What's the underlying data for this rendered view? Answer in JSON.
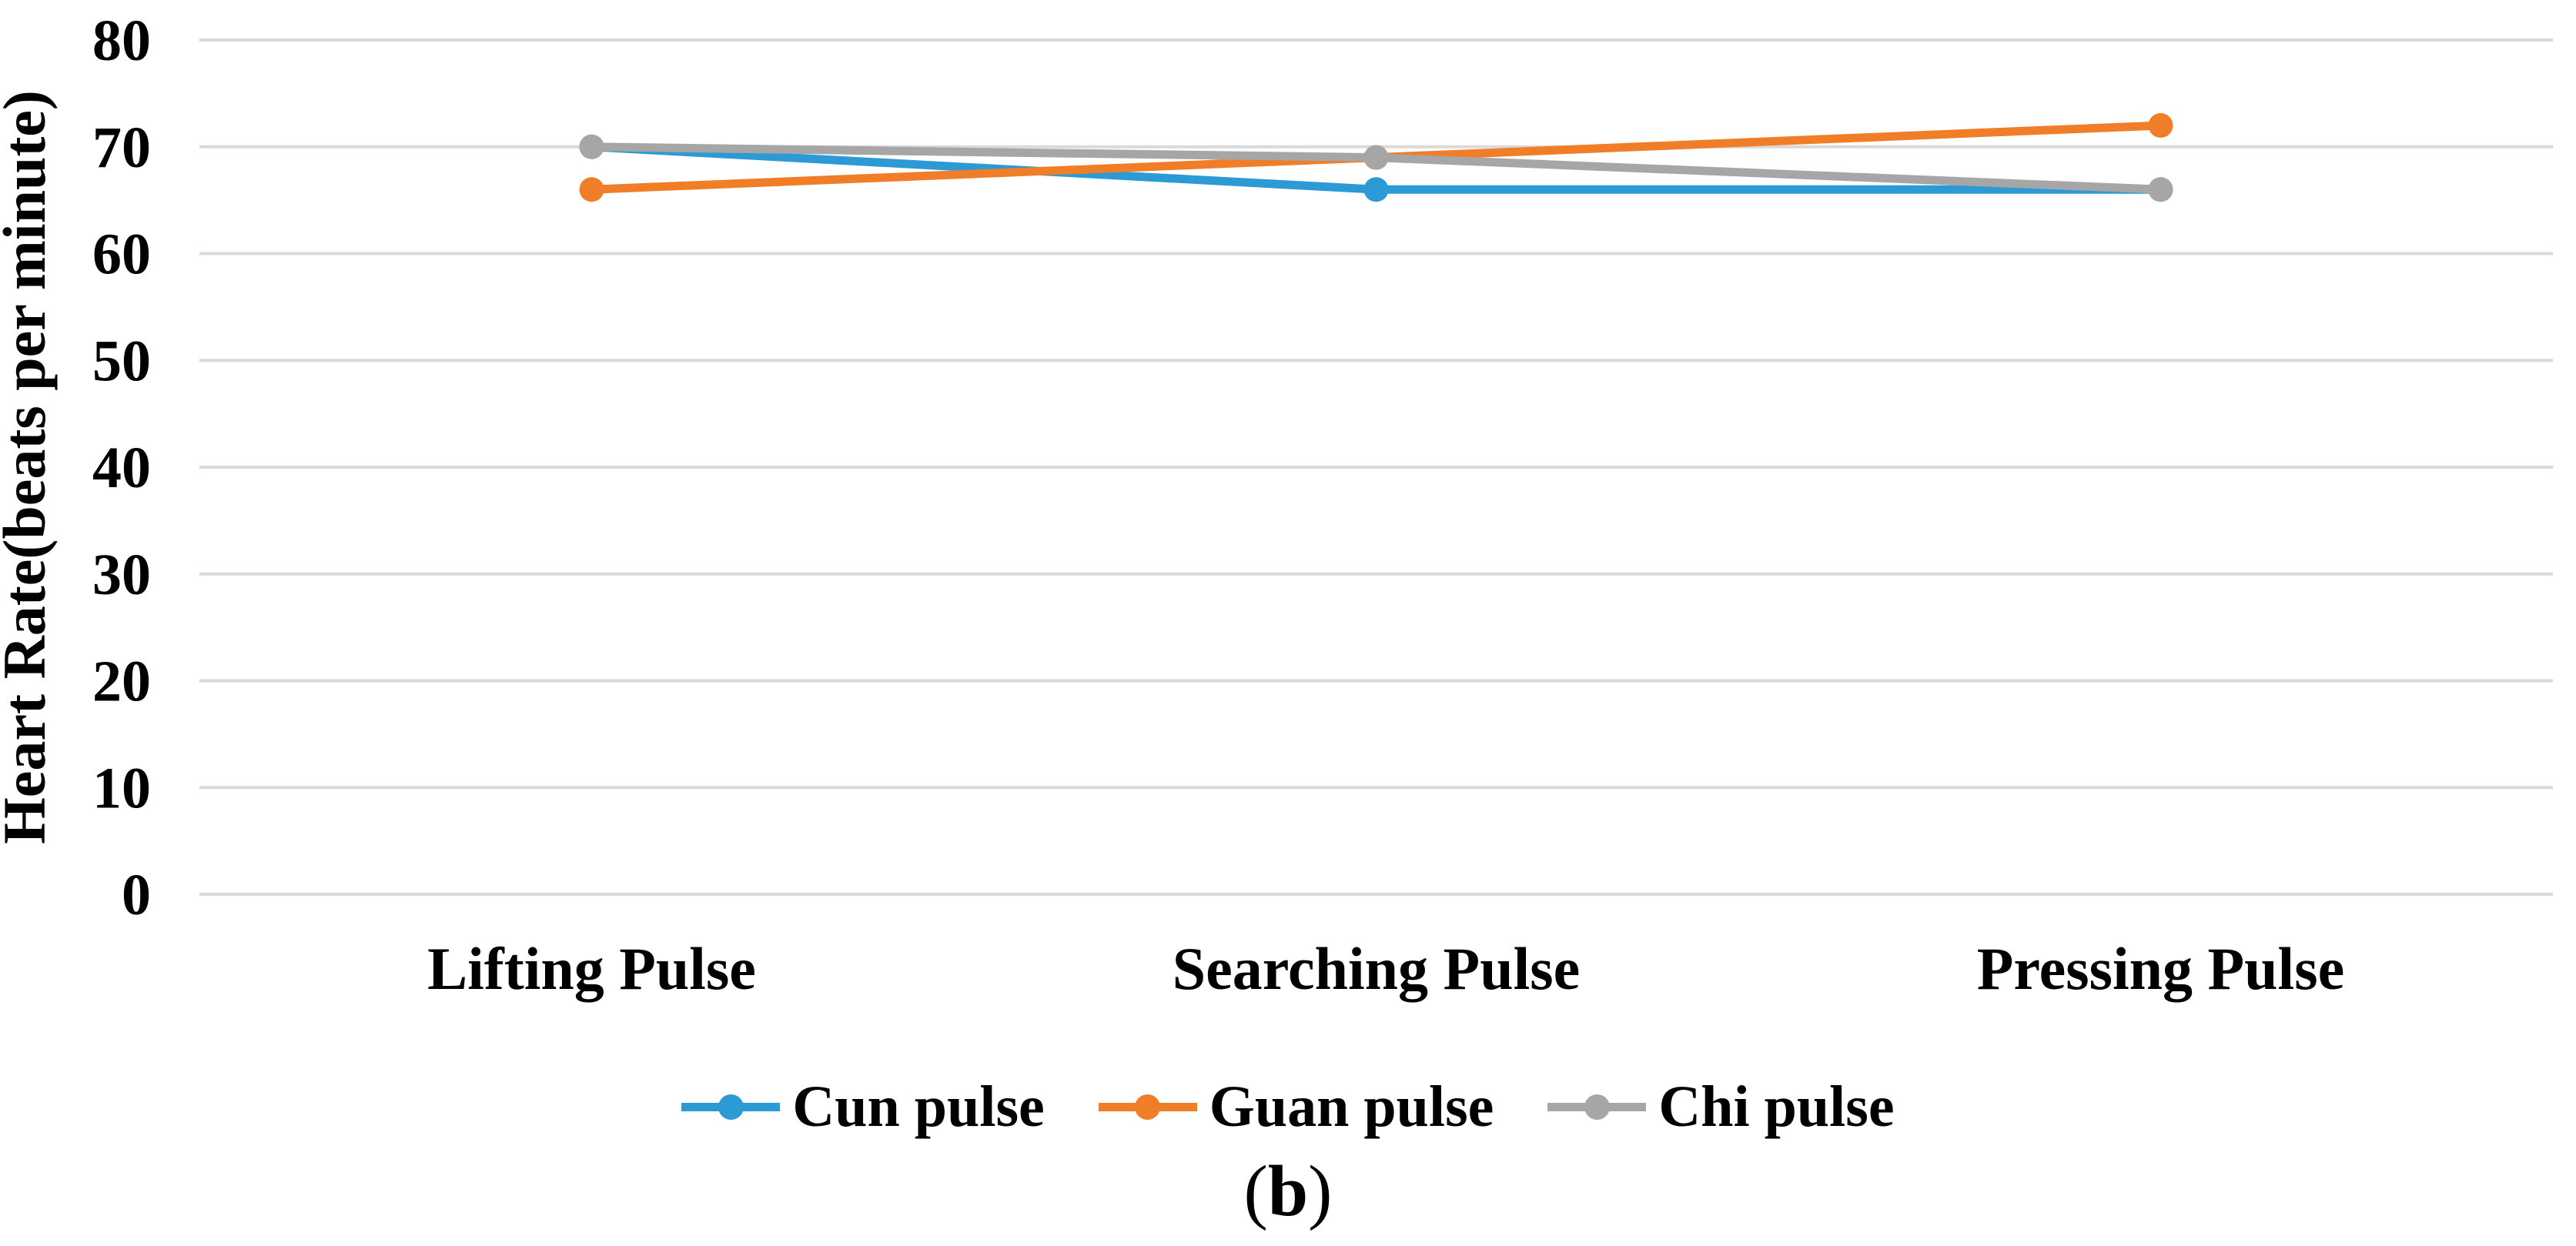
{
  "figure": {
    "caption_open": "(",
    "caption_letter": "b",
    "caption_close": ")"
  },
  "chart_data": {
    "type": "line",
    "title": "",
    "xlabel": "",
    "ylabel": "Heart Rate(beats per minute)",
    "categories": [
      "Lifting Pulse",
      "Searching Pulse",
      "Pressing Pulse"
    ],
    "series": [
      {
        "name": "Cun pulse",
        "color": "#2B9AD5",
        "values": [
          70,
          66,
          66
        ]
      },
      {
        "name": "Guan pulse",
        "color": "#F07D27",
        "values": [
          66,
          69,
          72
        ]
      },
      {
        "name": "Chi pulse",
        "color": "#A6A6A6",
        "values": [
          70,
          69,
          66
        ]
      }
    ],
    "ylim": [
      0,
      80
    ],
    "yticks": [
      0,
      10,
      20,
      30,
      40,
      50,
      60,
      70,
      80
    ],
    "grid": true,
    "gridline_color": "#D9D9D9",
    "legend_position": "bottom",
    "background": "#FFFFFF",
    "text_color": "#000000",
    "marker": "circle"
  }
}
